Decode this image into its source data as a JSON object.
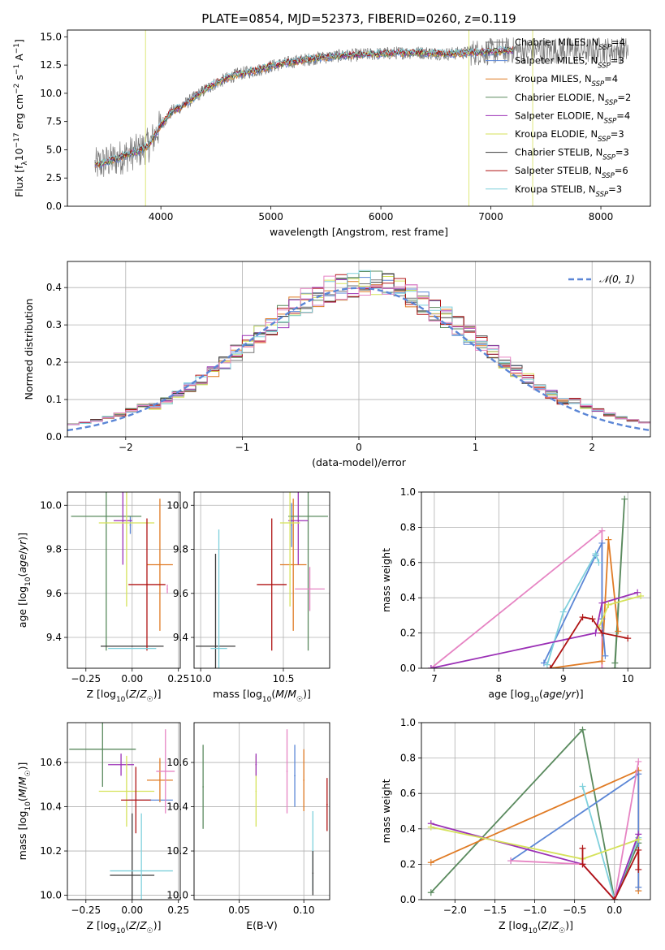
{
  "figure_title": "PLATE=0854, MJD=52373, FIBERID=0260, z=0.119",
  "colors": {
    "c0": "#777777",
    "c1": "#5b86d6",
    "c2": "#e07b25",
    "c3": "#5a8a5e",
    "c4": "#9b30b6",
    "c5": "#d5e25a",
    "c6": "#3c3c3c",
    "c7": "#b01515",
    "c8": "#7fd0dc",
    "pink": "#e684c3",
    "gauss": "#5b86d6"
  },
  "chart_data": [
    {
      "id": "spectrum",
      "type": "line",
      "xlabel": "wavelength [Angstrom, rest frame]",
      "ylabel": "Flux [f_λ 10^-17 erg cm^-2 s^-1 A^-1]",
      "xlim": [
        3150,
        8450
      ],
      "ylim": [
        0,
        15.6
      ],
      "xticks": [
        4000,
        5000,
        6000,
        7000,
        8000
      ],
      "yticks": [
        0.0,
        2.5,
        5.0,
        7.5,
        10.0,
        12.5,
        15.0
      ],
      "x": [
        3400,
        3500,
        3600,
        3700,
        3800,
        3900,
        4000,
        4100,
        4200,
        4300,
        4400,
        4500,
        4600,
        4700,
        4800,
        4900,
        5000,
        5200,
        5400,
        5600,
        5800,
        6000,
        6200,
        6400,
        6600,
        6800,
        7000,
        7200
      ],
      "model": [
        3.6,
        3.9,
        4.2,
        4.6,
        4.9,
        5.5,
        7.2,
        8.4,
        8.9,
        9.6,
        10.3,
        10.9,
        11.3,
        11.7,
        11.9,
        12.1,
        12.4,
        12.8,
        13.1,
        13.3,
        13.4,
        13.5,
        13.6,
        13.6,
        13.5,
        13.6,
        13.7,
        13.8
      ],
      "legend": [
        {
          "text": "Chabrier MILES, N",
          "sub": "SSP",
          "tail": "=4",
          "color": "c0"
        },
        {
          "text": "Salpeter MILES, N",
          "sub": "SSP",
          "tail": "=3",
          "color": "c1"
        },
        {
          "text": "Kroupa MILES, N",
          "sub": "SSP",
          "tail": "=4",
          "color": "c2"
        },
        {
          "text": "Chabrier ELODIE, N",
          "sub": "SSP",
          "tail": "=2",
          "color": "c3"
        },
        {
          "text": "Salpeter ELODIE, N",
          "sub": "SSP",
          "tail": "=4",
          "color": "c4"
        },
        {
          "text": "Kroupa ELODIE, N",
          "sub": "SSP",
          "tail": "=3",
          "color": "c5"
        },
        {
          "text": "Chabrier STELIB, N",
          "sub": "SSP",
          "tail": "=3",
          "color": "c6"
        },
        {
          "text": "Salpeter STELIB, N",
          "sub": "SSP",
          "tail": "=6",
          "color": "c7"
        },
        {
          "text": "Kroupa STELIB, N",
          "sub": "SSP",
          "tail": "=3",
          "color": "c8"
        }
      ]
    },
    {
      "id": "residuals",
      "type": "bar",
      "xlabel": "(data-model)/error",
      "ylabel": "Normed distribution",
      "xlim": [
        -2.5,
        2.5
      ],
      "ylim": [
        0,
        0.47
      ],
      "xticks": [
        -2,
        -1,
        0,
        1,
        2
      ],
      "yticks": [
        0.0,
        0.1,
        0.2,
        0.3,
        0.4
      ],
      "legend": "𝒩(0, 1)",
      "bin_width": 0.1
    },
    {
      "id": "z_age",
      "type": "scatter",
      "xlabel": "Z [log10(Z/Z☉)]",
      "ylabel": "age [log10(age/yr)]",
      "xlim": [
        -0.35,
        0.26
      ],
      "ylim": [
        9.26,
        10.06
      ],
      "xticks": [
        -0.25,
        0.0,
        0.25
      ],
      "xtick_labels": [
        "−0.25",
        "0.00",
        "0.25"
      ],
      "yticks": [
        9.4,
        9.6,
        9.8,
        10.0
      ],
      "ytick_labels": [
        "9.4",
        "9.6",
        "9.8",
        "10.0"
      ],
      "points": [
        {
          "x": -0.01,
          "y": 9.91,
          "xerr": 0.0,
          "yerr": 0.04,
          "color": "c1"
        },
        {
          "x": 0.15,
          "y": 9.73,
          "xerr": 0.07,
          "yerr": 0.3,
          "color": "c2"
        },
        {
          "x": -0.14,
          "y": 9.95,
          "xerr": 0.19,
          "yerr": 0.61,
          "color": "c3"
        },
        {
          "x": -0.05,
          "y": 9.93,
          "xerr": 0.05,
          "yerr": 0.2,
          "color": "c4"
        },
        {
          "x": -0.03,
          "y": 9.92,
          "xerr": 0.15,
          "yerr": 0.38,
          "color": "c5"
        },
        {
          "x": 0.0,
          "y": 9.36,
          "xerr": 0.17,
          "yerr": 0.0,
          "color": "c6"
        },
        {
          "x": 0.08,
          "y": 9.64,
          "xerr": 0.1,
          "yerr": 0.3,
          "color": "c7"
        },
        {
          "x": 0.0,
          "y": 9.35,
          "xerr": 0.13,
          "yerr": 0.0,
          "color": "c8"
        },
        {
          "x": 0.19,
          "y": 9.62,
          "xerr": 0.0,
          "yerr": 0.02,
          "color": "pink"
        }
      ]
    },
    {
      "id": "mass_age",
      "type": "scatter",
      "xlabel": "mass [log10(M/M☉)]",
      "ylabel": "",
      "xlim": [
        9.96,
        10.78
      ],
      "ylim": [
        9.26,
        10.06
      ],
      "xticks": [
        10.0,
        10.5
      ],
      "xtick_labels": [
        "10.0",
        "10.5"
      ],
      "yticks": [
        9.4,
        9.6,
        9.8,
        10.0
      ],
      "ytick_labels": [
        "9.4",
        "9.6",
        "9.8",
        "10.0"
      ],
      "points": [
        {
          "x": 10.55,
          "y": 9.91,
          "xerr": 0.0,
          "yerr": 0.1,
          "color": "c1"
        },
        {
          "x": 10.56,
          "y": 9.73,
          "xerr": 0.08,
          "yerr": 0.3,
          "color": "c2"
        },
        {
          "x": 10.65,
          "y": 9.95,
          "xerr": 0.12,
          "yerr": 0.61,
          "color": "c3"
        },
        {
          "x": 10.59,
          "y": 9.93,
          "xerr": 0.06,
          "yerr": 0.2,
          "color": "c4"
        },
        {
          "x": 10.54,
          "y": 9.92,
          "xerr": 0.06,
          "yerr": 0.38,
          "color": "c5"
        },
        {
          "x": 10.09,
          "y": 9.36,
          "xerr": 0.12,
          "yerr": 0.42,
          "color": "c6"
        },
        {
          "x": 10.43,
          "y": 9.64,
          "xerr": 0.09,
          "yerr": 0.3,
          "color": "c7"
        },
        {
          "x": 10.11,
          "y": 9.35,
          "xerr": 0.05,
          "yerr": 0.54,
          "color": "c8"
        },
        {
          "x": 10.66,
          "y": 9.62,
          "xerr": 0.09,
          "yerr": 0.1,
          "color": "pink"
        }
      ]
    },
    {
      "id": "age_weight",
      "type": "line",
      "xlabel": "age  [log10(age/yr)]",
      "ylabel": "mass weight",
      "xlim": [
        6.8,
        10.35
      ],
      "ylim": [
        0,
        1.0
      ],
      "xticks": [
        7,
        8,
        9,
        10
      ],
      "xtick_labels": [
        "7",
        "8",
        "9",
        "10"
      ],
      "yticks": [
        0.0,
        0.2,
        0.4,
        0.6,
        0.8,
        1.0
      ],
      "ytick_labels": [
        "0.0",
        "0.2",
        "0.4",
        "0.6",
        "0.8",
        "1.0"
      ],
      "series": [
        {
          "color": "pink",
          "x": [
            6.95,
            9.6,
            9.6
          ],
          "y": [
            0.0,
            0.78,
            0.0
          ]
        },
        {
          "color": "c3",
          "x": [
            9.8,
            9.95,
            9.8
          ],
          "y": [
            0.0,
            0.96,
            0.03
          ]
        },
        {
          "color": "c2",
          "x": [
            8.8,
            9.6,
            9.7,
            9.85
          ],
          "y": [
            0.0,
            0.04,
            0.73,
            0.21
          ]
        },
        {
          "color": "c1",
          "x": [
            8.7,
            9.5,
            9.6,
            9.6,
            9.65
          ],
          "y": [
            0.03,
            0.64,
            0.71,
            0.28,
            0.07
          ]
        },
        {
          "color": "c8",
          "x": [
            8.75,
            9.0,
            9.5,
            9.55
          ],
          "y": [
            0.02,
            0.32,
            0.65,
            0.6
          ]
        },
        {
          "color": "c4",
          "x": [
            6.95,
            9.5,
            9.6,
            10.15
          ],
          "y": [
            0.0,
            0.2,
            0.37,
            0.43
          ]
        },
        {
          "color": "c5",
          "x": [
            9.55,
            9.7,
            10.2
          ],
          "y": [
            0.23,
            0.36,
            0.41
          ]
        },
        {
          "color": "c7",
          "x": [
            8.8,
            9.3,
            9.45,
            9.6,
            10.0
          ],
          "y": [
            0.0,
            0.29,
            0.28,
            0.2,
            0.17
          ]
        }
      ]
    },
    {
      "id": "z_mass",
      "type": "scatter",
      "xlabel": "Z [log10(Z/Z☉)]",
      "ylabel": "mass [log10(M/M☉)]",
      "xlim": [
        -0.35,
        0.26
      ],
      "ylim": [
        9.98,
        10.78
      ],
      "xticks": [
        -0.25,
        0.0,
        0.25
      ],
      "xtick_labels": [
        "−0.25",
        "0.00",
        "0.25"
      ],
      "yticks": [
        10.0,
        10.2,
        10.4,
        10.6
      ],
      "ytick_labels": [
        "10.0",
        "10.2",
        "10.4",
        "10.6"
      ],
      "points": [
        {
          "x": 0.1,
          "y": 10.43,
          "xerr": 0.12,
          "yerr": 0.0,
          "color": "c1"
        },
        {
          "x": 0.15,
          "y": 10.52,
          "xerr": 0.07,
          "yerr": 0.1,
          "color": "c2"
        },
        {
          "x": -0.16,
          "y": 10.66,
          "xerr": 0.18,
          "yerr": 0.17,
          "color": "c3"
        },
        {
          "x": -0.06,
          "y": 10.59,
          "xerr": 0.07,
          "yerr": 0.05,
          "color": "c4"
        },
        {
          "x": -0.03,
          "y": 10.47,
          "xerr": 0.15,
          "yerr": 0.16,
          "color": "c5"
        },
        {
          "x": 0.0,
          "y": 10.09,
          "xerr": 0.12,
          "yerr": 0.28,
          "color": "c6"
        },
        {
          "x": 0.02,
          "y": 10.43,
          "xerr": 0.08,
          "yerr": 0.15,
          "color": "c7"
        },
        {
          "x": 0.05,
          "y": 10.11,
          "xerr": 0.17,
          "yerr": 0.26,
          "color": "c8"
        },
        {
          "x": 0.18,
          "y": 10.56,
          "xerr": 0.05,
          "yerr": 0.19,
          "color": "pink"
        }
      ]
    },
    {
      "id": "ebv_mass",
      "type": "scatter",
      "xlabel": "E(B-V)",
      "ylabel": "",
      "xlim": [
        0.015,
        0.12
      ],
      "ylim": [
        9.98,
        10.78
      ],
      "xticks": [
        0.05,
        0.1
      ],
      "xtick_labels": [
        "0.05",
        "0.10"
      ],
      "yticks": [
        10.0,
        10.2,
        10.4,
        10.6
      ],
      "ytick_labels": [
        "10.0",
        "10.2",
        "10.4",
        "10.6"
      ],
      "points": [
        {
          "x": 0.022,
          "y": 10.49,
          "xerr": 0,
          "yerr": 0.19,
          "color": "c3"
        },
        {
          "x": 0.063,
          "y": 10.47,
          "xerr": 0,
          "yerr": 0.16,
          "color": "c5"
        },
        {
          "x": 0.063,
          "y": 10.59,
          "xerr": 0,
          "yerr": 0.05,
          "color": "c4"
        },
        {
          "x": 0.087,
          "y": 10.56,
          "xerr": 0,
          "yerr": 0.19,
          "color": "pink"
        },
        {
          "x": 0.093,
          "y": 10.54,
          "xerr": 0,
          "yerr": 0.14,
          "color": "c1"
        },
        {
          "x": 0.1,
          "y": 10.52,
          "xerr": 0,
          "yerr": 0.14,
          "color": "c2"
        },
        {
          "x": 0.107,
          "y": 10.2,
          "xerr": 0,
          "yerr": 0.18,
          "color": "c8"
        },
        {
          "x": 0.107,
          "y": 10.1,
          "xerr": 0,
          "yerr": 0.1,
          "color": "c6"
        },
        {
          "x": 0.118,
          "y": 10.41,
          "xerr": 0,
          "yerr": 0.12,
          "color": "c7"
        }
      ]
    },
    {
      "id": "z_weight",
      "type": "line",
      "xlabel": "Z [log10(Z/Z☉)]",
      "ylabel": "mass weight",
      "xlim": [
        -2.42,
        0.45
      ],
      "ylim": [
        0,
        1.0
      ],
      "xticks": [
        -2.0,
        -1.5,
        -1.0,
        -0.5,
        0.0
      ],
      "xtick_labels": [
        "−2.0",
        "−1.5",
        "−1.0",
        "−0.5",
        "0.0"
      ],
      "yticks": [
        0.0,
        0.2,
        0.4,
        0.6,
        0.8,
        1.0
      ],
      "ytick_labels": [
        "0.0",
        "0.2",
        "0.4",
        "0.6",
        "0.8",
        "1.0"
      ],
      "series": [
        {
          "color": "c3",
          "x": [
            -2.3,
            -0.4,
            0.0,
            0.3
          ],
          "y": [
            0.04,
            0.96,
            0.0,
            0.32
          ]
        },
        {
          "color": "c2",
          "x": [
            -2.3,
            0.3,
            0.3
          ],
          "y": [
            0.21,
            0.73,
            0.05
          ]
        },
        {
          "color": "c1",
          "x": [
            -1.3,
            0.3,
            0.3
          ],
          "y": [
            0.22,
            0.71,
            0.07
          ]
        },
        {
          "color": "c8",
          "x": [
            -0.4,
            0.0,
            0.3
          ],
          "y": [
            0.64,
            0.0,
            0.35
          ]
        },
        {
          "color": "c4",
          "x": [
            -2.3,
            -0.4,
            0.0,
            0.3
          ],
          "y": [
            0.43,
            0.2,
            0.0,
            0.37
          ]
        },
        {
          "color": "c5",
          "x": [
            -2.3,
            -0.4,
            0.3
          ],
          "y": [
            0.41,
            0.23,
            0.34
          ]
        },
        {
          "color": "pink",
          "x": [
            -1.3,
            -0.4,
            0.0,
            0.3
          ],
          "y": [
            0.22,
            0.2,
            0.0,
            0.78
          ]
        },
        {
          "color": "c7",
          "x": [
            -0.4,
            -0.4,
            0.0,
            0.3,
            0.3
          ],
          "y": [
            0.29,
            0.2,
            0.0,
            0.28,
            0.17
          ]
        }
      ]
    }
  ]
}
